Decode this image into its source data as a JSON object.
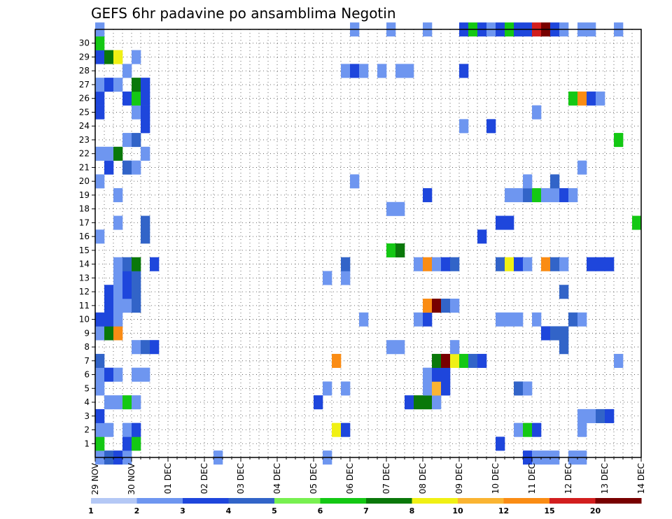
{
  "chart_data": {
    "type": "heatmap",
    "title": "GEFS 6hr padavine po ansamblima Negotin",
    "xlabel": "",
    "ylabel": "",
    "x_tick_labels": [
      "29 NOV",
      "30 NOV",
      "01 DEC",
      "02 DEC",
      "03 DEC",
      "04 DEC",
      "05 DEC",
      "06 DEC",
      "07 DEC",
      "08 DEC",
      "09 DEC",
      "10 DEC",
      "11 DEC",
      "12 DEC",
      "13 DEC",
      "14 DEC"
    ],
    "y_tick_labels": [
      "1",
      "2",
      "3",
      "4",
      "5",
      "6",
      "7",
      "8",
      "9",
      "10",
      "11",
      "12",
      "13",
      "14",
      "15",
      "16",
      "17",
      "18",
      "19",
      "20",
      "21",
      "22",
      "23",
      "24",
      "25",
      "26",
      "27",
      "28",
      "29",
      "30"
    ],
    "members": 31,
    "time_steps": 60,
    "time_step_hours": 6,
    "color_scale": {
      "labels": [
        "1",
        "2",
        "3",
        "4",
        "5",
        "6",
        "7",
        "8",
        "10",
        "12",
        "15",
        "20"
      ],
      "colors": [
        "#b4c8f5",
        "#6e96f0",
        "#1e46dc",
        "#3264c8",
        "#78f050",
        "#14c814",
        "#0a780a",
        "#f0f014",
        "#fab432",
        "#fa8c14",
        "#d21e1e",
        "#780000"
      ]
    },
    "cells": [
      [
        0,
        0,
        1
      ],
      [
        0,
        1,
        3
      ],
      [
        0,
        2,
        2
      ],
      [
        0,
        3,
        1
      ],
      [
        0,
        13,
        1
      ],
      [
        0,
        25,
        1
      ],
      [
        0,
        47,
        2
      ],
      [
        0,
        48,
        1
      ],
      [
        0,
        49,
        1
      ],
      [
        0,
        50,
        1
      ],
      [
        0,
        52,
        1
      ],
      [
        0,
        53,
        1
      ],
      [
        1,
        0,
        5
      ],
      [
        1,
        3,
        2
      ],
      [
        1,
        4,
        5
      ],
      [
        1,
        44,
        2
      ],
      [
        2,
        0,
        1
      ],
      [
        2,
        1,
        1
      ],
      [
        2,
        3,
        1
      ],
      [
        2,
        4,
        2
      ],
      [
        2,
        26,
        7
      ],
      [
        2,
        27,
        2
      ],
      [
        2,
        46,
        1
      ],
      [
        2,
        47,
        5
      ],
      [
        2,
        48,
        2
      ],
      [
        2,
        53,
        1
      ],
      [
        3,
        0,
        2
      ],
      [
        3,
        53,
        1
      ],
      [
        3,
        54,
        1
      ],
      [
        3,
        55,
        3
      ],
      [
        3,
        56,
        2
      ],
      [
        4,
        1,
        1
      ],
      [
        4,
        2,
        1
      ],
      [
        4,
        3,
        5
      ],
      [
        4,
        4,
        1
      ],
      [
        4,
        24,
        2
      ],
      [
        4,
        34,
        2
      ],
      [
        4,
        35,
        6
      ],
      [
        4,
        36,
        6
      ],
      [
        4,
        37,
        1
      ],
      [
        5,
        0,
        1
      ],
      [
        5,
        25,
        1
      ],
      [
        5,
        27,
        1
      ],
      [
        5,
        36,
        1
      ],
      [
        5,
        37,
        8
      ],
      [
        5,
        38,
        2
      ],
      [
        5,
        46,
        3
      ],
      [
        5,
        47,
        1
      ],
      [
        6,
        0,
        1
      ],
      [
        6,
        1,
        2
      ],
      [
        6,
        2,
        1
      ],
      [
        6,
        4,
        1
      ],
      [
        6,
        5,
        1
      ],
      [
        6,
        36,
        1
      ],
      [
        6,
        37,
        2
      ],
      [
        6,
        38,
        2
      ],
      [
        7,
        0,
        3
      ],
      [
        7,
        26,
        9
      ],
      [
        7,
        37,
        6
      ],
      [
        7,
        38,
        11
      ],
      [
        7,
        39,
        7
      ],
      [
        7,
        40,
        5
      ],
      [
        7,
        41,
        3
      ],
      [
        7,
        42,
        2
      ],
      [
        7,
        57,
        1
      ],
      [
        8,
        4,
        1
      ],
      [
        8,
        5,
        3
      ],
      [
        8,
        6,
        2
      ],
      [
        8,
        32,
        1
      ],
      [
        8,
        33,
        1
      ],
      [
        8,
        39,
        1
      ],
      [
        8,
        51,
        3
      ],
      [
        9,
        0,
        1
      ],
      [
        9,
        1,
        6
      ],
      [
        9,
        2,
        9
      ],
      [
        9,
        49,
        2
      ],
      [
        9,
        50,
        3
      ],
      [
        9,
        51,
        3
      ],
      [
        10,
        0,
        2
      ],
      [
        10,
        1,
        2
      ],
      [
        10,
        2,
        1
      ],
      [
        10,
        29,
        1
      ],
      [
        10,
        35,
        1
      ],
      [
        10,
        36,
        2
      ],
      [
        10,
        44,
        1
      ],
      [
        10,
        45,
        1
      ],
      [
        10,
        46,
        1
      ],
      [
        10,
        48,
        1
      ],
      [
        10,
        52,
        3
      ],
      [
        10,
        53,
        1
      ],
      [
        11,
        1,
        2
      ],
      [
        11,
        2,
        1
      ],
      [
        11,
        3,
        1
      ],
      [
        11,
        4,
        3
      ],
      [
        11,
        36,
        9
      ],
      [
        11,
        37,
        11
      ],
      [
        11,
        38,
        3
      ],
      [
        11,
        39,
        1
      ],
      [
        12,
        1,
        2
      ],
      [
        12,
        2,
        1
      ],
      [
        12,
        3,
        2
      ],
      [
        12,
        4,
        3
      ],
      [
        12,
        51,
        3
      ],
      [
        13,
        2,
        1
      ],
      [
        13,
        3,
        2
      ],
      [
        13,
        4,
        3
      ],
      [
        13,
        25,
        1
      ],
      [
        13,
        27,
        1
      ],
      [
        14,
        2,
        1
      ],
      [
        14,
        3,
        3
      ],
      [
        14,
        4,
        6
      ],
      [
        14,
        6,
        2
      ],
      [
        14,
        27,
        3
      ],
      [
        14,
        35,
        1
      ],
      [
        14,
        36,
        9
      ],
      [
        14,
        37,
        1
      ],
      [
        14,
        38,
        2
      ],
      [
        14,
        39,
        3
      ],
      [
        14,
        44,
        3
      ],
      [
        14,
        45,
        7
      ],
      [
        14,
        46,
        2
      ],
      [
        14,
        47,
        1
      ],
      [
        14,
        49,
        9
      ],
      [
        14,
        50,
        3
      ],
      [
        14,
        51,
        1
      ],
      [
        14,
        54,
        2
      ],
      [
        14,
        55,
        2
      ],
      [
        14,
        56,
        2
      ],
      [
        15,
        32,
        5
      ],
      [
        15,
        33,
        6
      ],
      [
        16,
        0,
        1
      ],
      [
        16,
        5,
        3
      ],
      [
        16,
        42,
        2
      ],
      [
        17,
        2,
        1
      ],
      [
        17,
        5,
        3
      ],
      [
        17,
        44,
        2
      ],
      [
        17,
        45,
        2
      ],
      [
        17,
        59,
        5
      ],
      [
        18,
        32,
        1
      ],
      [
        18,
        33,
        1
      ],
      [
        19,
        2,
        1
      ],
      [
        19,
        36,
        2
      ],
      [
        19,
        45,
        1
      ],
      [
        19,
        46,
        1
      ],
      [
        19,
        47,
        3
      ],
      [
        19,
        48,
        5
      ],
      [
        19,
        49,
        1
      ],
      [
        19,
        50,
        1
      ],
      [
        19,
        51,
        2
      ],
      [
        19,
        52,
        1
      ],
      [
        20,
        0,
        1
      ],
      [
        20,
        28,
        1
      ],
      [
        20,
        47,
        1
      ],
      [
        20,
        50,
        3
      ],
      [
        21,
        1,
        2
      ],
      [
        21,
        3,
        3
      ],
      [
        21,
        4,
        1
      ],
      [
        21,
        53,
        1
      ],
      [
        22,
        0,
        1
      ],
      [
        22,
        1,
        1
      ],
      [
        22,
        2,
        6
      ],
      [
        22,
        5,
        1
      ],
      [
        23,
        3,
        1
      ],
      [
        23,
        4,
        3
      ],
      [
        23,
        57,
        5
      ],
      [
        24,
        5,
        2
      ],
      [
        24,
        40,
        1
      ],
      [
        24,
        43,
        2
      ],
      [
        25,
        0,
        2
      ],
      [
        25,
        4,
        1
      ],
      [
        25,
        5,
        2
      ],
      [
        25,
        48,
        1
      ],
      [
        26,
        0,
        2
      ],
      [
        26,
        3,
        2
      ],
      [
        26,
        4,
        5
      ],
      [
        26,
        5,
        2
      ],
      [
        26,
        52,
        5
      ],
      [
        26,
        53,
        9
      ],
      [
        26,
        54,
        2
      ],
      [
        26,
        55,
        1
      ],
      [
        27,
        0,
        1
      ],
      [
        27,
        1,
        2
      ],
      [
        27,
        2,
        1
      ],
      [
        27,
        4,
        6
      ],
      [
        27,
        5,
        2
      ],
      [
        28,
        3,
        1
      ],
      [
        28,
        27,
        1
      ],
      [
        28,
        28,
        2
      ],
      [
        28,
        29,
        1
      ],
      [
        28,
        31,
        1
      ],
      [
        28,
        33,
        1
      ],
      [
        28,
        34,
        1
      ],
      [
        28,
        40,
        2
      ],
      [
        29,
        0,
        2
      ],
      [
        29,
        1,
        6
      ],
      [
        29,
        2,
        7
      ],
      [
        29,
        4,
        1
      ],
      [
        30,
        0,
        5
      ],
      [
        31,
        0,
        1
      ],
      [
        31,
        28,
        1
      ],
      [
        31,
        32,
        1
      ],
      [
        31,
        36,
        1
      ],
      [
        31,
        40,
        2
      ],
      [
        31,
        41,
        5
      ],
      [
        31,
        42,
        2
      ],
      [
        31,
        43,
        1
      ],
      [
        31,
        44,
        2
      ],
      [
        31,
        45,
        5
      ],
      [
        31,
        46,
        2
      ],
      [
        31,
        47,
        2
      ],
      [
        31,
        48,
        10
      ],
      [
        31,
        49,
        11
      ],
      [
        31,
        50,
        2
      ],
      [
        31,
        51,
        1
      ],
      [
        31,
        53,
        1
      ],
      [
        31,
        54,
        1
      ],
      [
        31,
        57,
        1
      ]
    ]
  }
}
